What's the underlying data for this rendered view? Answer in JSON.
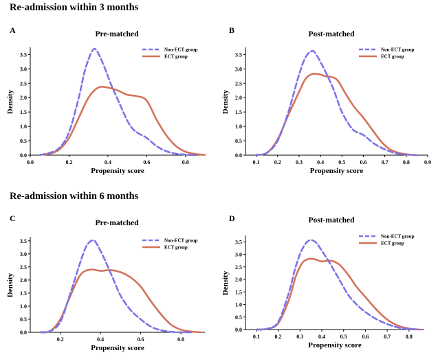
{
  "sections": [
    {
      "title": "Re-admission within 3 months"
    },
    {
      "title": "Re-admission within 6 months"
    }
  ],
  "colors": {
    "non_ect": "#7b73e8",
    "ect": "#d4725a"
  },
  "chart_data": [
    {
      "letter": "A",
      "type": "line",
      "title": "Pre-matched",
      "xlabel": "Propensity score",
      "ylabel": "Density",
      "xlim": [
        0.0,
        0.9
      ],
      "ylim": [
        0,
        3.7
      ],
      "xticks": [
        0.0,
        0.2,
        0.4,
        0.6,
        0.8
      ],
      "xtick_labels": [
        "0.0",
        "0.2",
        "0.4",
        "0.6",
        "0.8"
      ],
      "yticks": [
        0,
        0.5,
        1.0,
        1.5,
        2.0,
        2.5,
        3.0,
        3.5
      ],
      "ytick_labels": [
        "0.0",
        "0.5",
        "1.0",
        "1.5",
        "2.0",
        "2.5",
        "3.0",
        "3.5"
      ],
      "legend": "top-right",
      "series": [
        {
          "name": "Non-ECT group",
          "style": "dashed",
          "x": [
            0.05,
            0.1,
            0.15,
            0.2,
            0.25,
            0.28,
            0.31,
            0.33,
            0.35,
            0.38,
            0.42,
            0.46,
            0.5,
            0.53,
            0.56,
            0.6,
            0.65,
            0.7,
            0.75,
            0.8,
            0.85
          ],
          "y": [
            0.01,
            0.08,
            0.25,
            0.8,
            2.0,
            2.9,
            3.5,
            3.7,
            3.55,
            3.1,
            2.4,
            1.8,
            1.2,
            0.9,
            0.75,
            0.6,
            0.32,
            0.14,
            0.05,
            0.02,
            0.0
          ]
        },
        {
          "name": "ECT group",
          "style": "solid",
          "x": [
            0.05,
            0.1,
            0.15,
            0.2,
            0.25,
            0.3,
            0.35,
            0.4,
            0.45,
            0.5,
            0.55,
            0.6,
            0.65,
            0.7,
            0.75,
            0.8,
            0.85,
            0.9
          ],
          "y": [
            0.01,
            0.05,
            0.2,
            0.6,
            1.3,
            2.0,
            2.35,
            2.35,
            2.25,
            2.1,
            2.05,
            1.9,
            1.25,
            0.7,
            0.32,
            0.12,
            0.04,
            0.01
          ]
        }
      ]
    },
    {
      "letter": "B",
      "type": "line",
      "title": "Post-matched",
      "xlabel": "Propensity score",
      "ylabel": "Density",
      "xlim": [
        0.05,
        0.9
      ],
      "ylim": [
        0,
        3.7
      ],
      "xticks": [
        0.1,
        0.2,
        0.3,
        0.4,
        0.5,
        0.6,
        0.7,
        0.8,
        0.9
      ],
      "xtick_labels": [
        "0.1",
        "0.2",
        "0.3",
        "0.4",
        "0.5",
        "0.6",
        "0.7",
        "0.8",
        "0.9"
      ],
      "yticks": [
        0,
        0.5,
        1.0,
        1.5,
        2.0,
        2.5,
        3.0,
        3.5
      ],
      "ytick_labels": [
        "0.0",
        "0.5",
        "1.0",
        "1.5",
        "2.0",
        "2.5",
        "3.0",
        "3.5"
      ],
      "legend": "top-right",
      "series": [
        {
          "name": "Non-ECT group",
          "style": "dashed",
          "x": [
            0.1,
            0.15,
            0.2,
            0.25,
            0.3,
            0.33,
            0.36,
            0.38,
            0.42,
            0.46,
            0.5,
            0.55,
            0.6,
            0.65,
            0.7,
            0.75,
            0.8,
            0.85
          ],
          "y": [
            0.01,
            0.08,
            0.5,
            1.5,
            2.8,
            3.4,
            3.62,
            3.5,
            2.95,
            2.3,
            1.5,
            0.9,
            0.7,
            0.4,
            0.2,
            0.07,
            0.02,
            0.0
          ]
        },
        {
          "name": "ECT group",
          "style": "solid",
          "x": [
            0.1,
            0.15,
            0.2,
            0.25,
            0.3,
            0.33,
            0.36,
            0.39,
            0.42,
            0.45,
            0.48,
            0.52,
            0.56,
            0.6,
            0.64,
            0.68,
            0.72,
            0.76,
            0.8,
            0.85
          ],
          "y": [
            0.01,
            0.08,
            0.55,
            1.4,
            2.2,
            2.65,
            2.82,
            2.82,
            2.75,
            2.72,
            2.6,
            2.1,
            1.65,
            1.3,
            0.9,
            0.5,
            0.22,
            0.09,
            0.03,
            0.0
          ]
        }
      ]
    },
    {
      "letter": "C",
      "type": "line",
      "title": "Pre-matched",
      "xlabel": "Propensity score",
      "ylabel": "Density",
      "xlim": [
        0.05,
        0.92
      ],
      "ylim": [
        0,
        3.6
      ],
      "xticks": [
        0.2,
        0.4,
        0.6,
        0.8
      ],
      "xtick_labels": [
        "0.2",
        "0.4",
        "0.6",
        "0.8"
      ],
      "yticks": [
        0,
        0.5,
        1.0,
        1.5,
        2.0,
        2.5,
        3.0,
        3.5
      ],
      "ytick_labels": [
        "0.0",
        "0.5",
        "1.0",
        "1.5",
        "2.0",
        "2.5",
        "3.0",
        "3.5"
      ],
      "legend": "top-right",
      "series": [
        {
          "name": "Non-ECT group",
          "style": "dashed",
          "x": [
            0.1,
            0.15,
            0.2,
            0.25,
            0.3,
            0.33,
            0.36,
            0.38,
            0.42,
            0.46,
            0.5,
            0.55,
            0.6,
            0.65,
            0.7,
            0.75,
            0.8,
            0.85
          ],
          "y": [
            0.0,
            0.05,
            0.4,
            1.5,
            2.7,
            3.3,
            3.52,
            3.4,
            2.8,
            2.1,
            1.4,
            0.85,
            0.5,
            0.22,
            0.08,
            0.02,
            0.0,
            0.0
          ]
        },
        {
          "name": "ECT group",
          "style": "solid",
          "x": [
            0.1,
            0.15,
            0.2,
            0.25,
            0.3,
            0.35,
            0.4,
            0.45,
            0.5,
            0.55,
            0.6,
            0.65,
            0.7,
            0.75,
            0.8,
            0.85,
            0.9
          ],
          "y": [
            0.0,
            0.05,
            0.5,
            1.4,
            2.2,
            2.4,
            2.35,
            2.38,
            2.3,
            2.1,
            1.75,
            1.2,
            0.7,
            0.3,
            0.1,
            0.03,
            0.0
          ]
        }
      ]
    },
    {
      "letter": "D",
      "type": "line",
      "title": "Post-matched",
      "xlabel": "Propensity score",
      "ylabel": "Density",
      "xlim": [
        0.05,
        0.87
      ],
      "ylim": [
        0,
        3.7
      ],
      "xticks": [
        0.1,
        0.2,
        0.3,
        0.4,
        0.5,
        0.6,
        0.7,
        0.8
      ],
      "xtick_labels": [
        "0.1",
        "0.2",
        "0.3",
        "0.4",
        "0.5",
        "0.6",
        "0.7",
        "0.8"
      ],
      "yticks": [
        0,
        0.5,
        1.0,
        1.5,
        2.0,
        2.5,
        3.0,
        3.5
      ],
      "ytick_labels": [
        "0.0",
        "0.5",
        "1.0",
        "1.5",
        "2.0",
        "2.5",
        "3.0",
        "3.5"
      ],
      "legend": "top-right",
      "series": [
        {
          "name": "Non-ECT group",
          "style": "dashed",
          "x": [
            0.1,
            0.15,
            0.2,
            0.25,
            0.28,
            0.31,
            0.34,
            0.37,
            0.4,
            0.44,
            0.48,
            0.52,
            0.56,
            0.6,
            0.65,
            0.7,
            0.75,
            0.8,
            0.85
          ],
          "y": [
            0.0,
            0.03,
            0.3,
            1.5,
            2.5,
            3.2,
            3.55,
            3.5,
            3.15,
            2.6,
            2.0,
            1.4,
            1.0,
            0.7,
            0.42,
            0.22,
            0.08,
            0.02,
            0.0
          ]
        },
        {
          "name": "ECT group",
          "style": "solid",
          "x": [
            0.1,
            0.15,
            0.2,
            0.25,
            0.28,
            0.31,
            0.34,
            0.37,
            0.4,
            0.44,
            0.48,
            0.52,
            0.56,
            0.6,
            0.65,
            0.7,
            0.75,
            0.8,
            0.85
          ],
          "y": [
            0.0,
            0.03,
            0.25,
            1.2,
            2.1,
            2.65,
            2.82,
            2.8,
            2.72,
            2.75,
            2.6,
            2.2,
            1.7,
            1.3,
            0.8,
            0.4,
            0.15,
            0.04,
            0.0
          ]
        }
      ]
    }
  ]
}
